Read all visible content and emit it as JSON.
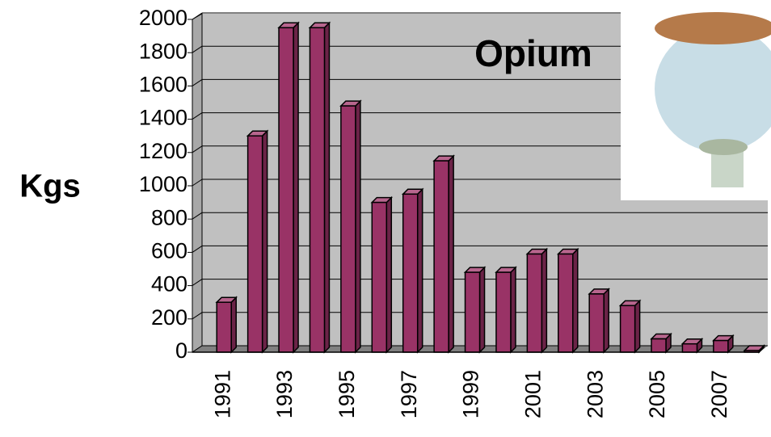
{
  "chart_data": {
    "type": "bar3d",
    "title": "Opium",
    "y_label": "Kgs",
    "categories": [
      "1991",
      null,
      "1993",
      null,
      "1995",
      null,
      "1997",
      null,
      "1999",
      null,
      "2001",
      null,
      "2003",
      null,
      "2005",
      null,
      "2007",
      null
    ],
    "values": [
      300,
      1300,
      1950,
      1950,
      1480,
      900,
      950,
      1150,
      480,
      480,
      590,
      590,
      350,
      280,
      80,
      50,
      70,
      10
    ],
    "color": "#993366",
    "ylim": [
      0,
      2000
    ],
    "yticks": [
      0,
      200,
      400,
      600,
      800,
      1000,
      1200,
      1400,
      1600,
      1800,
      2000
    ],
    "grid": true
  }
}
